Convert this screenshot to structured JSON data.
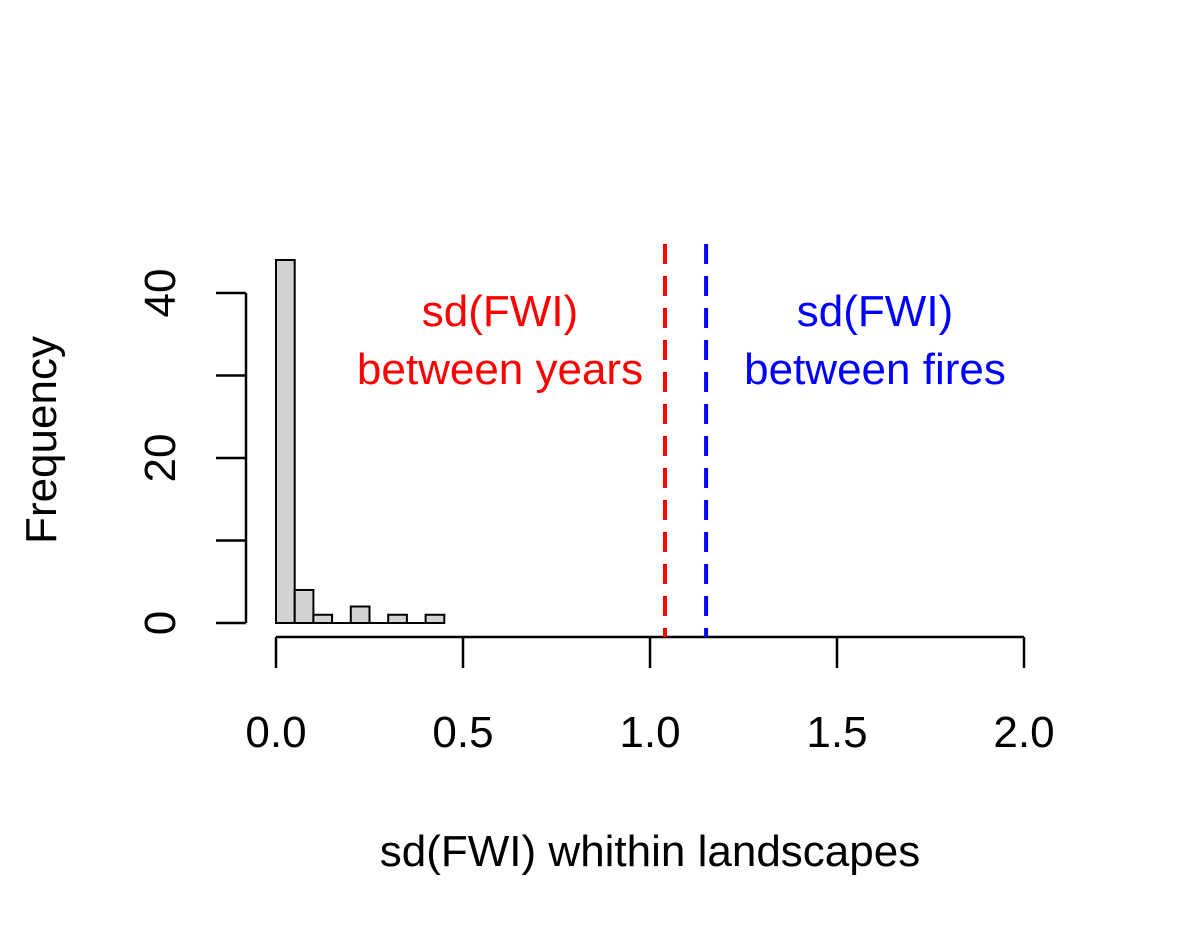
{
  "chart_data": {
    "type": "bar",
    "title": "",
    "xlabel": "sd(FWI) whithin landscapes",
    "ylabel": "Frequency",
    "xlim": [
      0,
      2
    ],
    "ylim": [
      0,
      45
    ],
    "x_ticks": [
      0,
      0.5,
      1,
      1.5,
      2
    ],
    "x_tick_labels": [
      "0.0",
      "0.5",
      "1.0",
      "1.5",
      "2.0"
    ],
    "y_ticks": [
      0,
      10,
      20,
      30,
      40
    ],
    "y_tick_labels": [
      "0",
      "",
      "20",
      "",
      "40"
    ],
    "bin_width": 0.05,
    "bins": [
      {
        "start": 0.0,
        "end": 0.05,
        "count": 44
      },
      {
        "start": 0.05,
        "end": 0.1,
        "count": 4
      },
      {
        "start": 0.1,
        "end": 0.15,
        "count": 1
      },
      {
        "start": 0.15,
        "end": 0.2,
        "count": 0
      },
      {
        "start": 0.2,
        "end": 0.25,
        "count": 2
      },
      {
        "start": 0.25,
        "end": 0.3,
        "count": 0
      },
      {
        "start": 0.3,
        "end": 0.35,
        "count": 1
      },
      {
        "start": 0.35,
        "end": 0.4,
        "count": 0
      },
      {
        "start": 0.4,
        "end": 0.45,
        "count": 1
      }
    ],
    "bar_color": "#d3d3d3",
    "reference_lines": [
      {
        "x": 1.04,
        "color": "#ff0000",
        "style": "dashed",
        "label_line1": "sd(FWI)",
        "label_line2": "between years"
      },
      {
        "x": 1.15,
        "color": "#0000ff",
        "style": "dashed",
        "label_line1": "sd(FWI)",
        "label_line2": "between fires"
      }
    ],
    "grid": false,
    "legend": "none"
  }
}
